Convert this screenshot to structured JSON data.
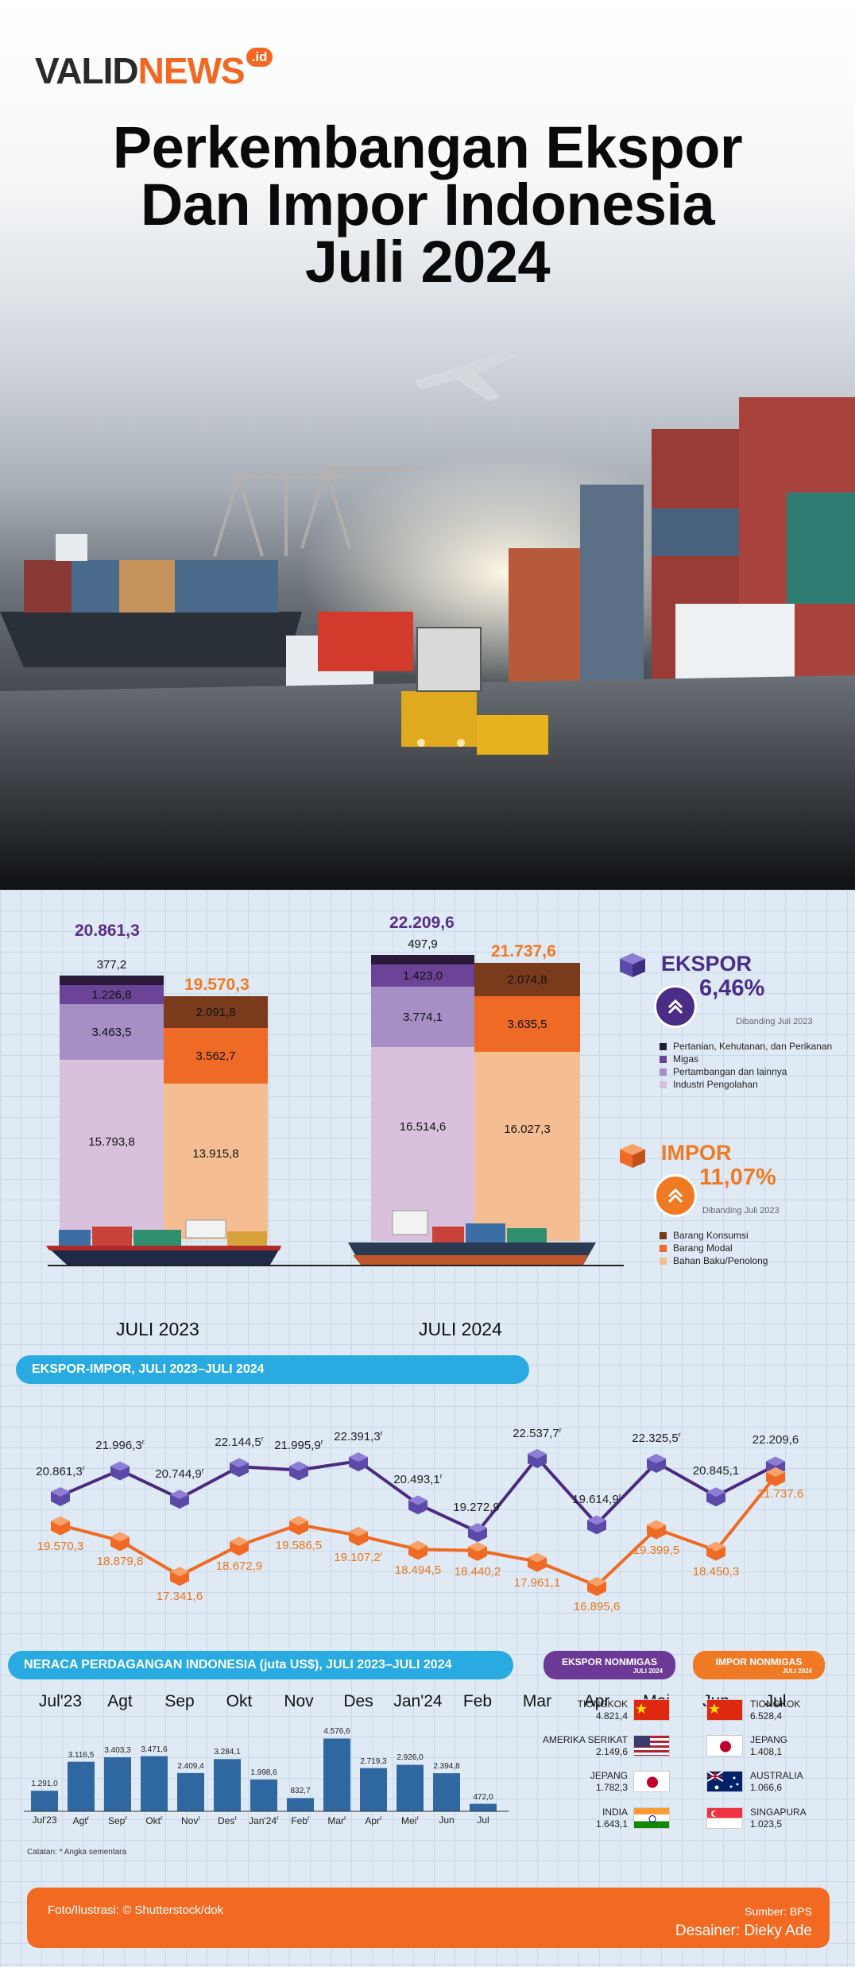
{
  "logo": {
    "valid": "VALID",
    "news": "NEWS",
    "tld": ".id"
  },
  "title": {
    "line1": "Perkembangan Ekspor",
    "line2": "Dan Impor Indonesia",
    "line3": "Juli 2024"
  },
  "colors": {
    "ekspor_total": "#5a2d86",
    "impor_total": "#f07a24",
    "pertanian": "#2a1a3a",
    "migas": "#6c4497",
    "pertambangan": "#a58fc4",
    "industri": "#d9c0dd",
    "konsumsi": "#7a3b1c",
    "modal": "#ef6a25",
    "bahan_baku": "#f4be92",
    "line_ekspor": "#4b2a80",
    "line_impor": "#ee6a24",
    "pill_blue": "#29abe2",
    "footer": "#f26a22"
  },
  "chart_data": [
    {
      "type": "bar",
      "title": "Ekspor dan Impor Juli 2023 vs Juli 2024",
      "categories": [
        "JULI 2023",
        "JULI 2024"
      ],
      "ekspor": {
        "totals": [
          "20.861,3",
          "22.209,6"
        ],
        "series": [
          {
            "name": "Industri Pengolahan",
            "values": [
              15793.8,
              16514.6
            ],
            "labels": [
              "15.793,8",
              "16.514,6"
            ]
          },
          {
            "name": "Pertambangan dan lainnya",
            "values": [
              3463.5,
              3774.1
            ],
            "labels": [
              "3.463,5",
              "3.774,1"
            ]
          },
          {
            "name": "Migas",
            "values": [
              1226.8,
              1423.0
            ],
            "labels": [
              "1.226,8",
              "1.423,0"
            ]
          },
          {
            "name": "Pertanian, Kehutanan, dan Perikanan",
            "values": [
              377.2,
              497.9
            ],
            "labels": [
              "377,2",
              "497,9"
            ]
          }
        ]
      },
      "impor": {
        "totals": [
          "19.570,3",
          "21.737,6"
        ],
        "series": [
          {
            "name": "Bahan Baku/Penolong",
            "values": [
              13915.8,
              16027.3
            ],
            "labels": [
              "13.915,8",
              "16.027,3"
            ]
          },
          {
            "name": "Barang Modal",
            "values": [
              3562.7,
              3635.5
            ],
            "labels": [
              "3.562,7",
              "3.635,5"
            ]
          },
          {
            "name": "Barang Konsumsi",
            "values": [
              2091.8,
              2074.8
            ],
            "labels": [
              "2.091,8",
              "2.074,8"
            ]
          }
        ]
      }
    },
    {
      "type": "line",
      "title": "EKSPOR-IMPOR, JULI 2023–JULI 2024",
      "categories": [
        "Jul'23",
        "Agt",
        "Sep",
        "Okt",
        "Nov",
        "Des",
        "Jan'24",
        "Feb",
        "Mar",
        "Apr",
        "Mei",
        "Jun",
        "Jul"
      ],
      "series": [
        {
          "name": "Ekspor",
          "values": [
            20861.3,
            21996.3,
            20744.9,
            22144.5,
            21995.9,
            22391.3,
            20493.1,
            19272.9,
            22537.7,
            19614.9,
            22325.5,
            20845.1,
            22209.6
          ],
          "labels": [
            "20.861,3",
            "21.996,3",
            "20.744,9",
            "22.144,5",
            "21.995,9",
            "22.391,3",
            "20.493,1",
            "19.272,9",
            "22.537,7",
            "19.614,9",
            "22.325,5",
            "20.845,1",
            "22.209,6"
          ],
          "revised": [
            true,
            true,
            true,
            true,
            true,
            true,
            true,
            true,
            true,
            true,
            true,
            false,
            false
          ]
        },
        {
          "name": "Impor",
          "values": [
            19570.3,
            18879.8,
            17341.6,
            18672.9,
            19586.5,
            19107.2,
            18494.5,
            18440.2,
            17961.1,
            16895.6,
            19399.5,
            18450.3,
            21737.6
          ],
          "labels": [
            "19.570,3",
            "18.879,8",
            "17.341,6",
            "18.672,9",
            "19.586,5",
            "19.107,2",
            "18.494,5",
            "18.440,2",
            "17.961,1",
            "16.895,6",
            "19.399,5",
            "18.450,3",
            "21.737,6"
          ],
          "revised": [
            false,
            false,
            false,
            false,
            false,
            true,
            false,
            false,
            false,
            false,
            false,
            false,
            false
          ]
        }
      ]
    },
    {
      "type": "bar",
      "title": "NERACA PERDAGANGAN INDONESIA (juta US$), JULI 2023–JULI 2024",
      "categories": [
        "Jul'23",
        "Agt",
        "Sep",
        "Okt",
        "Nov",
        "Des",
        "Jan'24",
        "Feb",
        "Mar",
        "Apr",
        "Mei",
        "Jun",
        "Jul"
      ],
      "values": [
        1291.0,
        3116.5,
        3403.3,
        3471.6,
        2409.4,
        3284.1,
        1998.6,
        832.7,
        4576.6,
        2719.3,
        2926.0,
        2394.8,
        472.0
      ],
      "labels": [
        "1.291,0",
        "3.116,5",
        "3.403,3",
        "3.471,6",
        "2.409,4",
        "3.284,1",
        "1.998,6",
        "832,7",
        "4.576,6",
        "2.719,3",
        "2.926,0",
        "2.394,8",
        "472,0"
      ],
      "revised": [
        false,
        true,
        true,
        true,
        true,
        true,
        true,
        true,
        true,
        true,
        true,
        false,
        false
      ],
      "ylim": [
        0,
        4600
      ]
    }
  ],
  "ekspor_legend": {
    "title": "EKSPOR",
    "pct": "6,46%",
    "note": "Dibanding Juli 2023",
    "items": [
      "Pertanian, Kehutanan, dan Perikanan",
      "Migas",
      "Pertambangan dan lainnya",
      "Industri Pengolahan"
    ]
  },
  "impor_legend": {
    "title": "IMPOR",
    "pct": "11,07%",
    "note": "Dibanding Juli 2023",
    "items": [
      "Barang Konsumsi",
      "Barang Modal",
      "Bahan Baku/Penolong"
    ]
  },
  "line_section": {
    "label": "EKSPOR-IMPOR, JULI 2023–JULI 2024",
    "rev_mark": "r"
  },
  "neraca_section": {
    "label": "NERACA PERDAGANGAN INDONESIA (juta US$), JULI 2023–JULI 2024",
    "note": "Catatan:  * Angka sementara"
  },
  "partners": {
    "ekspor_head": "EKSPOR NONMIGAS",
    "impor_head": "IMPOR NONMIGAS",
    "sub": "JULI 2024",
    "ekspor": [
      {
        "name": "TIONGKOK",
        "value": "4.821,4"
      },
      {
        "name": "AMERIKA SERIKAT",
        "value": "2.149,6"
      },
      {
        "name": "JEPANG",
        "value": "1.782,3"
      },
      {
        "name": "INDIA",
        "value": "1.643,1"
      }
    ],
    "impor": [
      {
        "name": "TIONGKOK",
        "value": "6.528,4"
      },
      {
        "name": "JEPANG",
        "value": "1.408,1"
      },
      {
        "name": "AUSTRALIA",
        "value": "1.066,6"
      },
      {
        "name": "SINGAPURA",
        "value": "1.023,5"
      }
    ]
  },
  "footer": {
    "photo": "Foto/Ilustrasi: © Shutterstock/dok",
    "source": "Sumber: BPS",
    "designer": "Desainer: Dieky Ade"
  }
}
